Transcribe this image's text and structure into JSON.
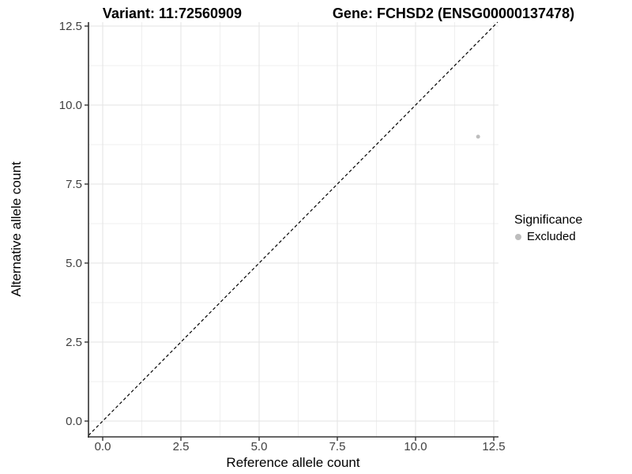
{
  "chart_data": {
    "type": "scatter",
    "title_left": "Variant: 11:72560909",
    "title_right": "Gene: FCHSD2 (ENSG00000137478)",
    "xlabel": "Reference allele count",
    "ylabel": "Alternative allele count",
    "x_ticks": [
      0,
      2.5,
      5,
      7.5,
      10,
      12.5
    ],
    "x_tick_labels": [
      "0.0",
      "2.5",
      "5.0",
      "7.5",
      "10.0",
      "12.5"
    ],
    "y_ticks": [
      0,
      2.5,
      5,
      7.5,
      10,
      12.5
    ],
    "y_tick_labels": [
      "0.0",
      "2.5",
      "5.0",
      "7.5",
      "10.0",
      "12.5"
    ],
    "xlim": [
      -0.45,
      12.65
    ],
    "ylim": [
      -0.5,
      12.63
    ],
    "grid": "major+minor",
    "legend_position": "right",
    "reference_line": {
      "type": "identity-diagonal",
      "style": "dashed",
      "color": "#000000"
    },
    "series": [
      {
        "name": "Excluded",
        "color": "#bdbdbd",
        "points": [
          {
            "x": 12,
            "y": 9
          }
        ]
      }
    ],
    "legend": {
      "title": "Significance",
      "entries": [
        {
          "label": "Excluded",
          "color": "#bdbdbd"
        }
      ]
    }
  },
  "colors": {
    "background": "#ffffff",
    "point": "#bdbdbd",
    "grid_major": "#e3e3e3",
    "grid_minor": "#efefef",
    "axis": "#333333",
    "tick_text": "#404040",
    "title_text": "#000000",
    "dashed_line": "#000000"
  }
}
